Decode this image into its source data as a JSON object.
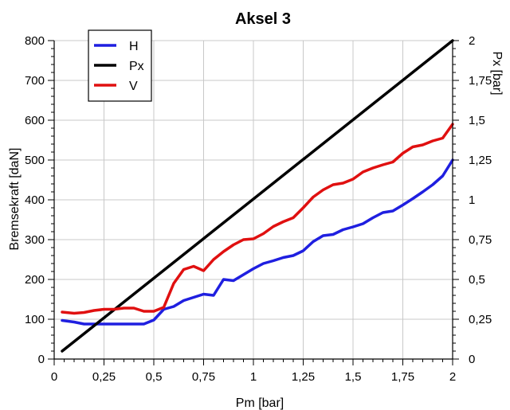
{
  "chart_data": {
    "type": "line",
    "title": "Aksel 3",
    "xlabel": "Pm [bar]",
    "ylabel": "Bremsekraft [daN]",
    "y2label": "Px [bar]",
    "xlim": [
      0,
      2
    ],
    "ylim": [
      0,
      800
    ],
    "y2lim": [
      0,
      2
    ],
    "grid": true,
    "legend_position": "top-left",
    "x_ticks": [
      {
        "value": 0,
        "label": "0"
      },
      {
        "value": 0.25,
        "label": "0,25"
      },
      {
        "value": 0.5,
        "label": "0,5"
      },
      {
        "value": 0.75,
        "label": "0,75"
      },
      {
        "value": 1,
        "label": "1"
      },
      {
        "value": 1.25,
        "label": "1,25"
      },
      {
        "value": 1.5,
        "label": "1,5"
      },
      {
        "value": 1.75,
        "label": "1,75"
      },
      {
        "value": 2,
        "label": "2"
      }
    ],
    "y_ticks": [
      {
        "value": 0,
        "label": "0"
      },
      {
        "value": 100,
        "label": "100"
      },
      {
        "value": 200,
        "label": "200"
      },
      {
        "value": 300,
        "label": "300"
      },
      {
        "value": 400,
        "label": "400"
      },
      {
        "value": 500,
        "label": "500"
      },
      {
        "value": 600,
        "label": "600"
      },
      {
        "value": 700,
        "label": "700"
      },
      {
        "value": 800,
        "label": "800"
      }
    ],
    "y2_ticks": [
      {
        "value": 0,
        "label": "0"
      },
      {
        "value": 0.25,
        "label": "0,25"
      },
      {
        "value": 0.5,
        "label": "0,5"
      },
      {
        "value": 0.75,
        "label": "0,75"
      },
      {
        "value": 1,
        "label": "1"
      },
      {
        "value": 1.25,
        "label": "1,25"
      },
      {
        "value": 1.5,
        "label": "1,5"
      },
      {
        "value": 1.75,
        "label": "1,75"
      },
      {
        "value": 2,
        "label": "2"
      }
    ],
    "series": [
      {
        "name": "H",
        "color": "#1f1fe0",
        "axis": "left",
        "x": [
          0.04,
          0.1,
          0.15,
          0.2,
          0.25,
          0.3,
          0.35,
          0.4,
          0.45,
          0.5,
          0.55,
          0.6,
          0.65,
          0.7,
          0.75,
          0.8,
          0.85,
          0.9,
          0.95,
          1,
          1.05,
          1.1,
          1.15,
          1.2,
          1.25,
          1.3,
          1.35,
          1.4,
          1.45,
          1.5,
          1.55,
          1.6,
          1.65,
          1.7,
          1.75,
          1.8,
          1.85,
          1.9,
          1.95,
          2
        ],
        "values": [
          97,
          93,
          88,
          88,
          88,
          88,
          88,
          88,
          88,
          98,
          125,
          132,
          147,
          155,
          163,
          160,
          200,
          197,
          212,
          227,
          240,
          247,
          255,
          260,
          272,
          295,
          310,
          313,
          325,
          332,
          340,
          355,
          368,
          372,
          387,
          403,
          420,
          438,
          460,
          500
        ]
      },
      {
        "name": "Px",
        "color": "#000000",
        "axis": "right",
        "x": [
          0.04,
          2
        ],
        "values": [
          0.05,
          2
        ]
      },
      {
        "name": "V",
        "color": "#e01010",
        "axis": "left",
        "x": [
          0.04,
          0.1,
          0.15,
          0.2,
          0.25,
          0.3,
          0.35,
          0.4,
          0.45,
          0.5,
          0.55,
          0.6,
          0.65,
          0.7,
          0.75,
          0.8,
          0.85,
          0.9,
          0.95,
          1,
          1.05,
          1.1,
          1.15,
          1.2,
          1.25,
          1.3,
          1.35,
          1.4,
          1.45,
          1.5,
          1.55,
          1.6,
          1.65,
          1.7,
          1.75,
          1.8,
          1.85,
          1.9,
          1.95,
          2
        ],
        "values": [
          118,
          115,
          117,
          122,
          125,
          125,
          128,
          128,
          120,
          120,
          130,
          190,
          225,
          233,
          222,
          250,
          270,
          287,
          300,
          302,
          315,
          333,
          345,
          355,
          380,
          407,
          425,
          438,
          442,
          452,
          470,
          480,
          488,
          495,
          517,
          533,
          538,
          548,
          555,
          590
        ]
      }
    ]
  }
}
